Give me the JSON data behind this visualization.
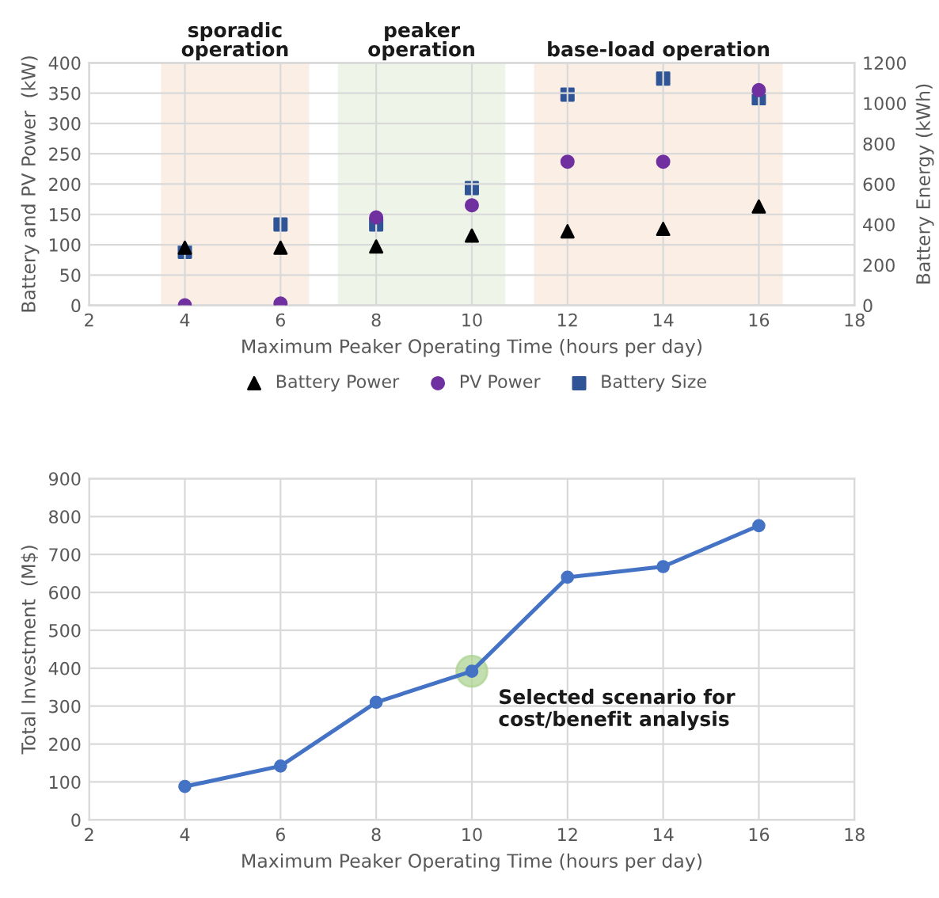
{
  "chart_data": [
    {
      "type": "scatter",
      "xlabel": "Maximum Peaker Operating Time (hours per day)",
      "ylabel": "Battery and PV Power  (kW)",
      "y2label": "Battery Energy (kWh)",
      "x": [
        4,
        6,
        8,
        10,
        12,
        14,
        16
      ],
      "series": [
        {
          "name": "Battery Power",
          "color": "#000000",
          "marker": "triangle",
          "values": [
            95,
            95,
            97,
            115,
            122,
            126,
            163
          ]
        },
        {
          "name": "PV Power",
          "color": "#7030a0",
          "marker": "circle",
          "values": [
            0,
            3,
            145,
            165,
            237,
            237,
            355
          ]
        },
        {
          "name": "Battery Size",
          "color": "#2f5597",
          "marker": "square",
          "axis": "y2",
          "values": [
            265,
            400,
            400,
            580,
            1043,
            1122,
            1025
          ]
        }
      ],
      "bands": [
        {
          "axis": "x",
          "from": 3.5,
          "to": 6.6,
          "label": "sporadic\noperation",
          "color": "#fbeee4"
        },
        {
          "axis": "x",
          "from": 7.2,
          "to": 10.7,
          "label": "peaker\noperation",
          "color": "#eef5e8"
        },
        {
          "axis": "x",
          "from": 11.3,
          "to": 16.5,
          "label": "base-load operation",
          "color": "#fbeee4"
        }
      ],
      "xlim": [
        2,
        18
      ],
      "xticks": [
        2,
        4,
        6,
        8,
        10,
        12,
        14,
        16,
        18
      ],
      "ylim": [
        0,
        400
      ],
      "yticks": [
        0,
        50,
        100,
        150,
        200,
        250,
        300,
        350,
        400
      ],
      "y2lim": [
        0,
        1200
      ],
      "y2ticks": [
        0,
        200,
        400,
        600,
        800,
        1000,
        1200
      ],
      "grid": true,
      "legend": "bottom"
    },
    {
      "type": "line",
      "xlabel": "Maximum Peaker Operating Time (hours per day)",
      "ylabel": "Total Investment  (M$)",
      "x": [
        4,
        6,
        8,
        10,
        12,
        14,
        16
      ],
      "series": [
        {
          "color": "#4472c4",
          "values": [
            88,
            142,
            310,
            392,
            640,
            668,
            776
          ]
        }
      ],
      "annotations": [
        {
          "text": "Selected scenario for\ncost/benefit analysis",
          "x": 10,
          "y": 392
        }
      ],
      "marker": "circle",
      "line_style": "solid",
      "xlim": [
        2,
        18
      ],
      "xticks": [
        2,
        4,
        6,
        8,
        10,
        12,
        14,
        16,
        18
      ],
      "ylim": [
        0,
        900
      ],
      "yticks": [
        0,
        100,
        200,
        300,
        400,
        500,
        600,
        700,
        800,
        900
      ],
      "grid": true,
      "legend": false
    }
  ]
}
